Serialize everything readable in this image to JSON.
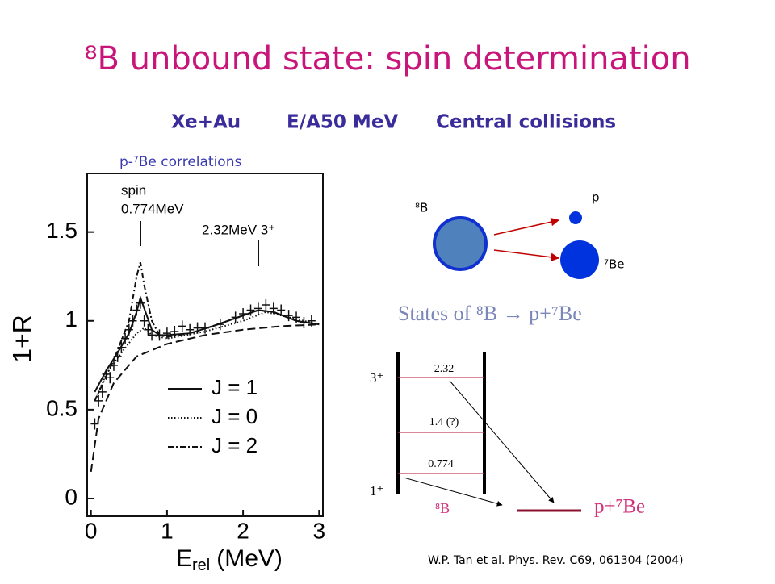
{
  "header": {
    "title": "⁸B unbound state: spin determination",
    "subtitle": [
      "Xe+Au",
      "E/A50 MeV",
      "Central collisions"
    ]
  },
  "plot": {
    "caption": "p-⁷Be correlations",
    "ylabel": "1+R",
    "xlabel": {
      "main": "E",
      "sub": "rel",
      "unit": "(MeV)"
    },
    "xlim": [
      -0.05,
      3.05
    ],
    "ylim": [
      -0.1,
      1.83
    ],
    "xticks": [
      0,
      1,
      2,
      3
    ],
    "yticks": [
      0,
      0.5,
      1,
      1.5
    ],
    "annotations": [
      "spin",
      "0.774MeV",
      "2.32MeV 3⁺"
    ],
    "series": [
      {
        "name": "J = 1",
        "style": "solid",
        "color": "#111111",
        "x": [
          0.05,
          0.2,
          0.35,
          0.5,
          0.6,
          0.65,
          0.7,
          0.8,
          0.9,
          1.0,
          1.3,
          1.6,
          2.0,
          2.2,
          2.4,
          2.7,
          3.0
        ],
        "values": [
          0.6,
          0.72,
          0.82,
          0.93,
          1.05,
          1.13,
          1.07,
          0.95,
          0.92,
          0.92,
          0.93,
          0.97,
          1.03,
          1.06,
          1.05,
          1.0,
          0.98
        ]
      },
      {
        "name": "J = 0",
        "style": "dotted",
        "color": "#111111",
        "x": [
          0.05,
          0.2,
          0.4,
          0.6,
          0.7,
          0.8,
          1.0,
          1.5,
          2.0,
          2.3,
          2.6,
          3.0
        ],
        "values": [
          0.55,
          0.7,
          0.82,
          0.93,
          0.96,
          0.92,
          0.9,
          0.94,
          1.0,
          1.05,
          1.02,
          0.98
        ]
      },
      {
        "name": "J = 2",
        "style": "dashdot",
        "color": "#111111",
        "x": [
          0.05,
          0.3,
          0.5,
          0.6,
          0.65,
          0.7,
          0.8,
          0.9,
          1.0,
          1.3,
          1.6,
          2.0,
          2.2,
          2.4,
          2.7,
          3.0
        ],
        "values": [
          0.55,
          0.78,
          1.0,
          1.25,
          1.33,
          1.2,
          1.0,
          0.92,
          0.91,
          0.93,
          0.97,
          1.03,
          1.06,
          1.05,
          1.0,
          0.98
        ]
      },
      {
        "style": "dashed",
        "color": "#111111",
        "x": [
          0.0,
          0.1,
          0.3,
          0.6,
          1.0,
          1.5,
          2.0,
          2.5,
          3.0
        ],
        "values": [
          0.15,
          0.45,
          0.65,
          0.8,
          0.87,
          0.92,
          0.95,
          0.97,
          0.98
        ]
      }
    ],
    "points": {
      "x": [
        0.05,
        0.1,
        0.15,
        0.2,
        0.25,
        0.3,
        0.35,
        0.4,
        0.45,
        0.5,
        0.55,
        0.6,
        0.65,
        0.7,
        0.75,
        0.8,
        0.9,
        1.0,
        1.1,
        1.2,
        1.3,
        1.4,
        1.5,
        1.7,
        1.9,
        2.0,
        2.1,
        2.2,
        2.3,
        2.4,
        2.5,
        2.6,
        2.7,
        2.8,
        2.9
      ],
      "values": [
        0.42,
        0.55,
        0.6,
        0.7,
        0.68,
        0.75,
        0.8,
        0.85,
        0.9,
        0.95,
        1.0,
        1.06,
        1.1,
        1.0,
        0.95,
        0.92,
        0.92,
        0.93,
        0.94,
        0.97,
        0.95,
        0.96,
        0.96,
        0.98,
        1.02,
        1.04,
        1.06,
        1.07,
        1.09,
        1.07,
        1.06,
        1.03,
        1.02,
        0.99,
        1.0
      ]
    }
  },
  "decay": {
    "parent": "⁸B",
    "proton": "p",
    "daughter": "⁷Be"
  },
  "levels": {
    "heading": "States of ⁸B  → p+⁷Be",
    "spins": [
      "3⁺",
      "1⁺"
    ],
    "energies": [
      2.32,
      "1.4 (?)",
      0.774
    ],
    "system": "⁸B",
    "threshold": "p+⁷Be"
  },
  "citation": "W.P. Tan et al. Phys. Rev. C69, 061304 (2004)"
}
